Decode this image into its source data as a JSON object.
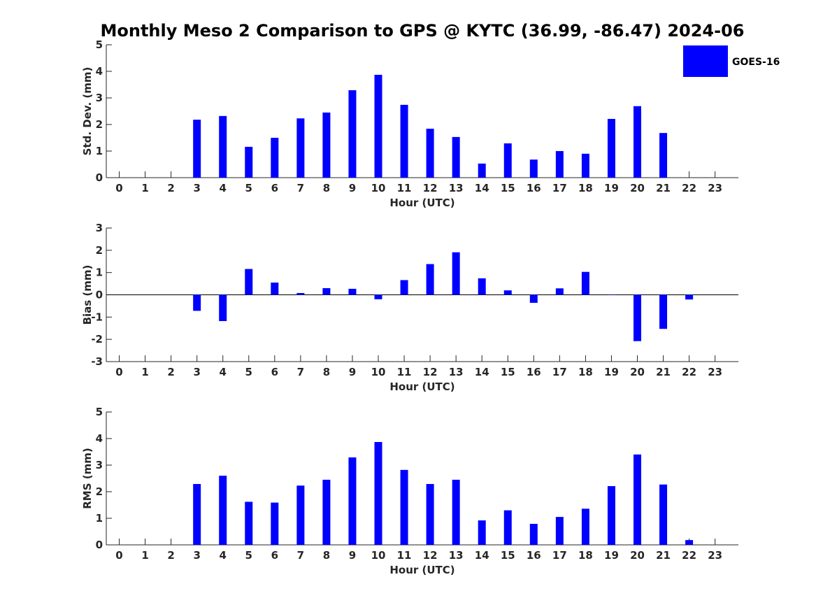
{
  "title": "Monthly Meso 2 Comparison to GPS @ KYTC (36.99, -86.47) 2024-06",
  "legend": {
    "label": "GOES-16",
    "color": "#0000ff",
    "placement": "top-right"
  },
  "chart_data": [
    {
      "type": "bar",
      "x": [
        0,
        1,
        2,
        3,
        4,
        5,
        6,
        7,
        8,
        9,
        10,
        11,
        12,
        13,
        14,
        15,
        16,
        17,
        18,
        19,
        20,
        21,
        22,
        23
      ],
      "series": [
        {
          "name": "GOES-16",
          "values": [
            null,
            null,
            null,
            2.18,
            2.32,
            1.16,
            1.5,
            2.23,
            2.45,
            3.29,
            3.87,
            2.74,
            1.84,
            1.53,
            0.53,
            1.29,
            0.68,
            1.0,
            0.9,
            2.21,
            2.69,
            1.68,
            null,
            null
          ]
        }
      ],
      "xlabel": "Hour (UTC)",
      "ylabel": "Std. Dev. (mm)",
      "xlim": [
        -0.5,
        23.9
      ],
      "ylim": [
        0,
        5
      ],
      "yticks": [
        0,
        1,
        2,
        3,
        4,
        5
      ],
      "grid": false
    },
    {
      "type": "bar",
      "x": [
        0,
        1,
        2,
        3,
        4,
        5,
        6,
        7,
        8,
        9,
        10,
        11,
        12,
        13,
        14,
        15,
        16,
        17,
        18,
        19,
        20,
        21,
        22,
        23
      ],
      "series": [
        {
          "name": "GOES-16",
          "values": [
            null,
            null,
            null,
            -0.72,
            -1.18,
            1.16,
            0.55,
            0.08,
            0.3,
            0.27,
            -0.2,
            0.66,
            1.38,
            1.91,
            0.74,
            0.2,
            -0.36,
            0.29,
            1.03,
            0.0,
            -2.08,
            -1.53,
            -0.21,
            null
          ]
        }
      ],
      "xlabel": "Hour (UTC)",
      "ylabel": "Bias (mm)",
      "xlim": [
        -0.5,
        23.9
      ],
      "ylim": [
        -3,
        3
      ],
      "yticks": [
        -3,
        -2,
        -1,
        0,
        1,
        2,
        3
      ],
      "zero_line": true,
      "grid": false
    },
    {
      "type": "bar",
      "x": [
        0,
        1,
        2,
        3,
        4,
        5,
        6,
        7,
        8,
        9,
        10,
        11,
        12,
        13,
        14,
        15,
        16,
        17,
        18,
        19,
        20,
        21,
        22,
        23
      ],
      "series": [
        {
          "name": "GOES-16",
          "values": [
            null,
            null,
            null,
            2.29,
            2.6,
            1.62,
            1.59,
            2.23,
            2.45,
            3.29,
            3.87,
            2.82,
            2.29,
            2.45,
            0.92,
            1.3,
            0.79,
            1.05,
            1.36,
            2.21,
            3.4,
            2.27,
            0.18,
            null
          ]
        }
      ],
      "xlabel": "Hour (UTC)",
      "ylabel": "RMS (mm)",
      "xlim": [
        -0.5,
        23.9
      ],
      "ylim": [
        0,
        5
      ],
      "yticks": [
        0,
        1,
        2,
        3,
        4,
        5
      ],
      "grid": false
    }
  ]
}
